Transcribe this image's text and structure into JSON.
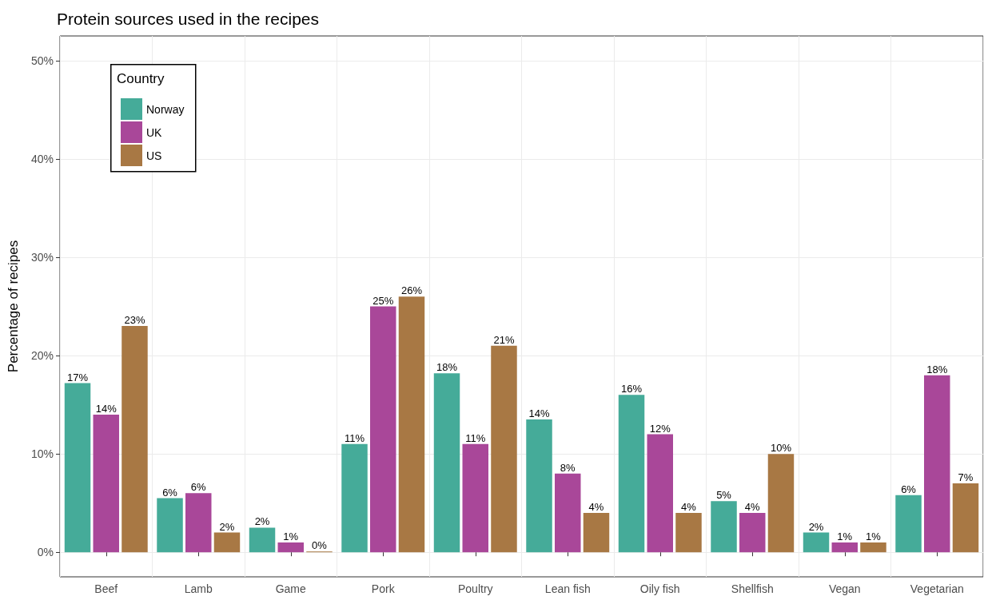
{
  "chart_data": {
    "type": "bar",
    "title": "Protein sources used in the recipes",
    "ylabel": "Percentage of recipes",
    "legend_title": "Country",
    "legend": "top left",
    "grid": true,
    "categories": [
      "Beef",
      "Lamb",
      "Game",
      "Pork",
      "Poultry",
      "Lean fish",
      "Oily fish",
      "Shellfish",
      "Vegan",
      "Vegetarian"
    ],
    "series": [
      {
        "name": "Norway",
        "color": "#45ab99",
        "values": [
          17.2,
          5.5,
          2.5,
          11,
          18.2,
          13.5,
          16,
          5.2,
          2,
          5.8
        ],
        "value_labels": [
          "17%",
          "6%",
          "2%",
          "11%",
          "18%",
          "14%",
          "16%",
          "5%",
          "2%",
          "6%"
        ]
      },
      {
        "name": "UK",
        "color": "#a94799",
        "values": [
          14,
          6,
          1,
          25,
          11,
          8,
          12,
          4,
          1,
          18
        ],
        "value_labels": [
          "14%",
          "6%",
          "1%",
          "25%",
          "11%",
          "8%",
          "12%",
          "4%",
          "1%",
          "18%"
        ]
      },
      {
        "name": "US",
        "color": "#a87844",
        "values": [
          23,
          2,
          0,
          26,
          21,
          4,
          4,
          10,
          1,
          7
        ],
        "value_labels": [
          "23%",
          "2%",
          "0%",
          "26%",
          "21%",
          "4%",
          "4%",
          "10%",
          "1%",
          "7%"
        ]
      }
    ],
    "ylim": [
      -2.5,
      52.5
    ],
    "yticks": [
      {
        "value": 0,
        "label": "0%"
      },
      {
        "value": 10,
        "label": "10%"
      },
      {
        "value": 20,
        "label": "20%"
      },
      {
        "value": 30,
        "label": "30%"
      },
      {
        "value": 40,
        "label": "40%"
      },
      {
        "value": 50,
        "label": "50%"
      }
    ]
  }
}
